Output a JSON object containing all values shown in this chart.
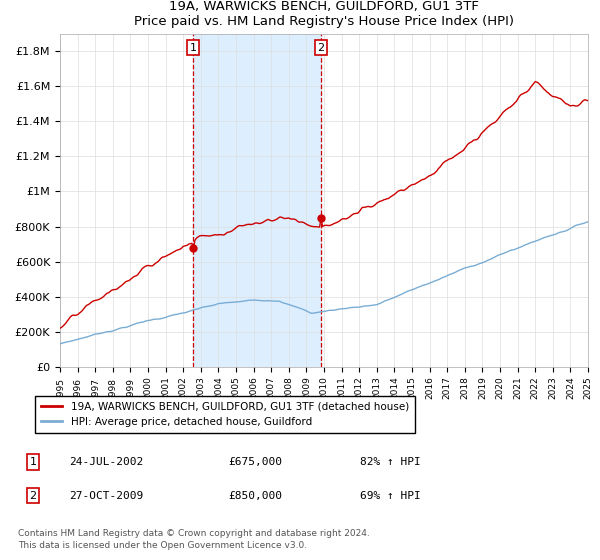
{
  "title": "19A, WARWICKS BENCH, GUILDFORD, GU1 3TF",
  "subtitle": "Price paid vs. HM Land Registry's House Price Index (HPI)",
  "ylabel_ticks": [
    "£0",
    "£200K",
    "£400K",
    "£600K",
    "£800K",
    "£1M",
    "£1.2M",
    "£1.4M",
    "£1.6M",
    "£1.8M"
  ],
  "ytick_vals": [
    0,
    200000,
    400000,
    600000,
    800000,
    1000000,
    1200000,
    1400000,
    1600000,
    1800000
  ],
  "ylim": [
    0,
    1900000
  ],
  "year_start": 1995,
  "year_end": 2025,
  "purchase1_year": 2002.56,
  "purchase1_price": 675000,
  "purchase1_label": "1",
  "purchase1_date": "24-JUL-2002",
  "purchase1_hpi_pct": "82%",
  "purchase2_year": 2009.83,
  "purchase2_price": 850000,
  "purchase2_label": "2",
  "purchase2_date": "27-OCT-2009",
  "purchase2_hpi_pct": "69%",
  "red_line_color": "#cc0000",
  "blue_line_color": "#7aadd4",
  "vline_color": "#cc0000",
  "shaded_color": "#ddeeff",
  "legend_label_red": "19A, WARWICKS BENCH, GUILDFORD, GU1 3TF (detached house)",
  "legend_label_blue": "HPI: Average price, detached house, Guildford",
  "footnote1": "Contains HM Land Registry data © Crown copyright and database right 2024.",
  "footnote2": "This data is licensed under the Open Government Licence v3.0."
}
